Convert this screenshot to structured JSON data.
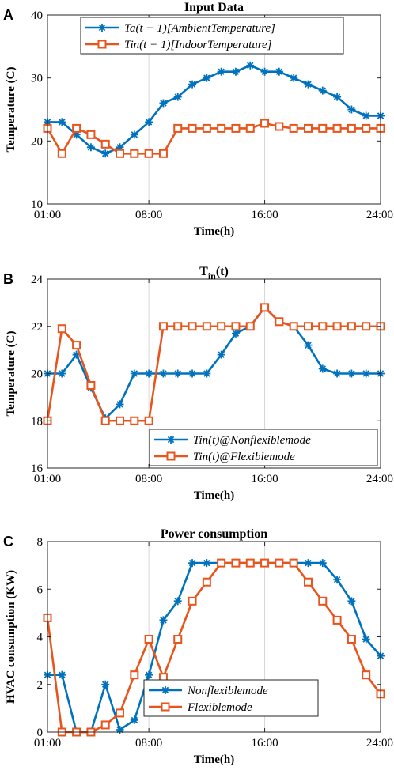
{
  "colors": {
    "blue": "#0072BD",
    "orange": "#E8541B"
  },
  "chart_data": [
    {
      "type": "line",
      "panel_letter": "A",
      "title": "Input Data",
      "xlabel": "Time(h)",
      "ylabel": "Temperature (C)",
      "xticks": [
        "01:00",
        "08:00",
        "16:00",
        "24:00"
      ],
      "yticks": [
        "10",
        "20",
        "30",
        "40"
      ],
      "ylim": [
        10,
        40
      ],
      "grid": "vertical",
      "legend_position": "top-left",
      "x": [
        1,
        2,
        3,
        4,
        5,
        6,
        7,
        8,
        9,
        10,
        11,
        12,
        13,
        14,
        15,
        16,
        17,
        18,
        19,
        20,
        21,
        22,
        23,
        24
      ],
      "series": [
        {
          "name": "Ta(t − 1)[AmbientTemperature]",
          "color": "#0072BD",
          "marker": "asterisk",
          "values": [
            23,
            23,
            21,
            19,
            18,
            19,
            21,
            23,
            26,
            27,
            29,
            30,
            31,
            31,
            32,
            31,
            31,
            30,
            29,
            28,
            27,
            25,
            24,
            24
          ]
        },
        {
          "name": "Tin(t − 1)[IndoorTemperature]",
          "color": "#E8541B",
          "marker": "square",
          "values": [
            22,
            18,
            22,
            21,
            19.5,
            18,
            18,
            18,
            18,
            22,
            22,
            22,
            22,
            22,
            22,
            22.8,
            22.3,
            22,
            22,
            22,
            22,
            22,
            22,
            22
          ]
        }
      ]
    },
    {
      "type": "line",
      "panel_letter": "B",
      "title": "T",
      "title_subscript": "in",
      "title_suffix": "(t)",
      "xlabel": "Time(h)",
      "ylabel": "Temperature (C)",
      "xticks": [
        "01:00",
        "08:00",
        "16:00",
        "24:00"
      ],
      "yticks": [
        "16",
        "18",
        "20",
        "22",
        "24"
      ],
      "ylim": [
        16,
        24
      ],
      "grid": "vertical",
      "legend_position": "bottom-right",
      "x": [
        1,
        2,
        3,
        4,
        5,
        6,
        7,
        8,
        9,
        10,
        11,
        12,
        13,
        14,
        15,
        16,
        17,
        18,
        19,
        20,
        21,
        22,
        23,
        24
      ],
      "series": [
        {
          "name": "Tin(t)@Nonflexiblemode",
          "color": "#0072BD",
          "marker": "asterisk",
          "values": [
            20,
            20,
            20.8,
            19.4,
            18.1,
            18.7,
            20,
            20,
            20,
            20,
            20,
            20,
            20.8,
            21.7,
            22,
            22.8,
            22.2,
            22,
            21.2,
            20.2,
            20,
            20,
            20,
            20
          ]
        },
        {
          "name": "Tin(t)@Flexiblemode",
          "color": "#E8541B",
          "marker": "square",
          "values": [
            18,
            21.9,
            21.2,
            19.5,
            18,
            18,
            18,
            18,
            22,
            22,
            22,
            22,
            22,
            22,
            22,
            22.8,
            22.2,
            22,
            22,
            22,
            22,
            22,
            22,
            22
          ]
        }
      ]
    },
    {
      "type": "line",
      "panel_letter": "C",
      "title": "Power consumption",
      "xlabel": "Time(h)",
      "ylabel": "HVAC consumption (KW)",
      "xticks": [
        "01:00",
        "08:00",
        "16:00",
        "24:00"
      ],
      "yticks": [
        "0",
        "2",
        "4",
        "6",
        "8"
      ],
      "ylim": [
        0,
        8
      ],
      "grid": "vertical",
      "legend_position": "bottom-left",
      "x": [
        1,
        2,
        3,
        4,
        5,
        6,
        7,
        8,
        9,
        10,
        11,
        12,
        13,
        14,
        15,
        16,
        17,
        18,
        19,
        20,
        21,
        22,
        23,
        24
      ],
      "series": [
        {
          "name": "Nonflexiblemode",
          "color": "#0072BD",
          "marker": "asterisk",
          "values": [
            2.4,
            2.4,
            0,
            0,
            2,
            0.1,
            0.5,
            2.4,
            4.7,
            5.5,
            7.1,
            7.1,
            7.1,
            7.1,
            7.1,
            7.1,
            7.1,
            7.1,
            7.1,
            7.1,
            6.4,
            5.5,
            3.9,
            3.2
          ]
        },
        {
          "name": "Flexiblemode",
          "color": "#E8541B",
          "marker": "square",
          "values": [
            4.8,
            0,
            0,
            0,
            0.3,
            0.8,
            2.4,
            3.9,
            2.3,
            3.9,
            5.5,
            6.3,
            7.1,
            7.1,
            7.1,
            7.1,
            7.1,
            7.1,
            6.3,
            5.5,
            4.7,
            3.9,
            2.4,
            1.6
          ]
        }
      ]
    }
  ]
}
